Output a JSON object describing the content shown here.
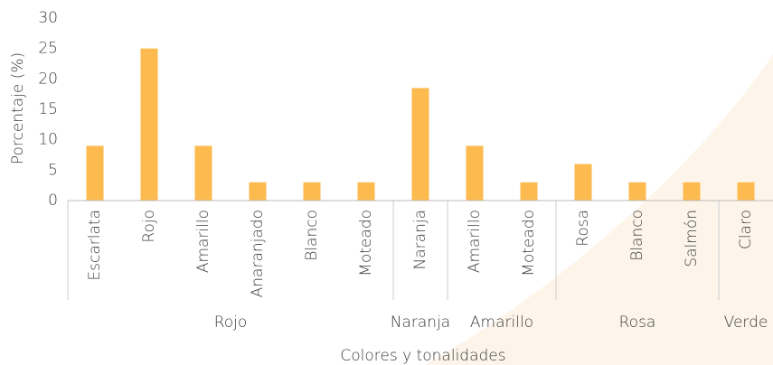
{
  "chart_data": {
    "type": "bar",
    "x_label": "Colores y tonalidades",
    "y_label": "Porcentaje (%)",
    "color": "#fdba4e",
    "ylim": [
      0,
      30
    ],
    "yticks": [
      0,
      5,
      10,
      15,
      20,
      25,
      30
    ],
    "grid": false,
    "groups": [
      {
        "name": "Rojo",
        "categories": [
          "Escarlata",
          "Rojo",
          "Amarillo",
          "Anaranjado",
          "Blanco",
          "Moteado"
        ],
        "values": [
          9,
          25,
          9,
          3,
          3,
          3
        ]
      },
      {
        "name": "Naranja",
        "categories": [
          "Naranja"
        ],
        "values": [
          18.5
        ]
      },
      {
        "name": "Amarillo",
        "categories": [
          "Amarillo",
          "Moteado"
        ],
        "values": [
          9,
          3
        ]
      },
      {
        "name": "Rosa",
        "categories": [
          "Rosa",
          "Blanco",
          "Salmón"
        ],
        "values": [
          6,
          3,
          3
        ]
      },
      {
        "name": "Verde",
        "categories": [
          "Claro"
        ],
        "values": [
          3
        ]
      }
    ]
  }
}
